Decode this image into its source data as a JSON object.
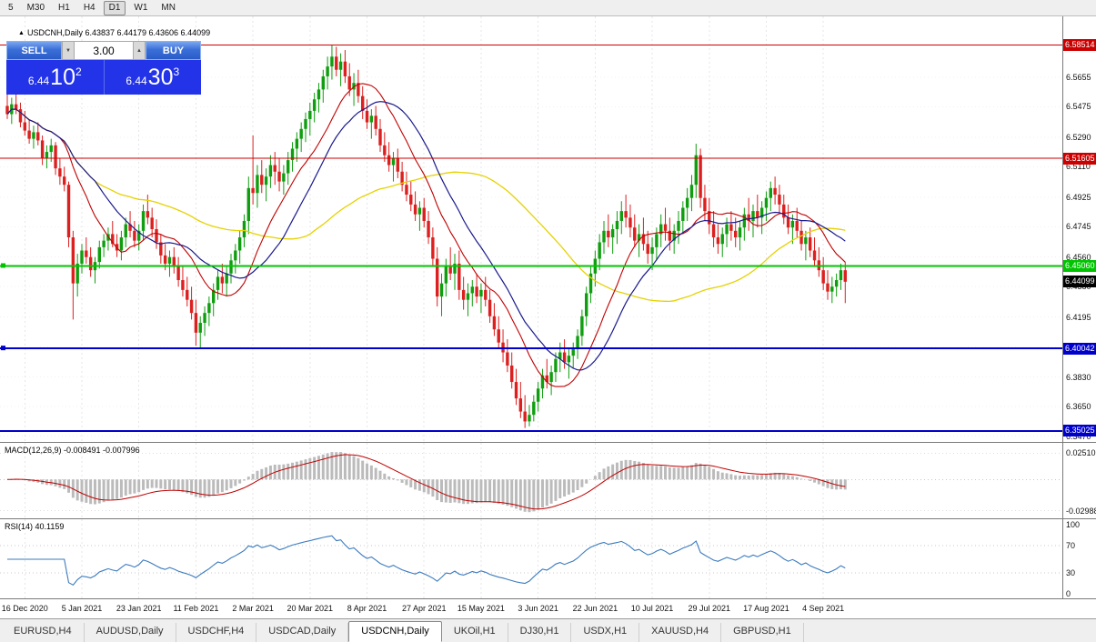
{
  "toolbar": {
    "timeframes": [
      {
        "label": "5",
        "active": false
      },
      {
        "label": "M30",
        "active": false
      },
      {
        "label": "H1",
        "active": false
      },
      {
        "label": "H4",
        "active": false
      },
      {
        "label": "D1",
        "active": true
      },
      {
        "label": "W1",
        "active": false
      },
      {
        "label": "MN",
        "active": false
      }
    ]
  },
  "chart": {
    "collapse_glyph": "▲",
    "symbol_info": "USDCNH,Daily 6.43837 6.44179 6.43606 6.44099"
  },
  "trade_panel": {
    "sell_label": "SELL",
    "buy_label": "BUY",
    "volume": "3.00",
    "spin_down_glyph": "▼",
    "spin_up_glyph": "▲",
    "sell_price": {
      "prefix": "6.44",
      "big": "10",
      "sup": "2"
    },
    "buy_price": {
      "prefix": "6.44",
      "big": "30",
      "sup": "3"
    }
  },
  "price_axis": {
    "ticks": [
      "6.5655",
      "6.5475",
      "6.5290",
      "6.5110",
      "6.4925",
      "6.4745",
      "6.4560",
      "6.4380",
      "6.4195",
      "6.4010",
      "6.3830",
      "6.3650",
      "6.3470"
    ]
  },
  "levels": [
    {
      "label": "6.58514",
      "price": 6.58514,
      "color": "#CC0000",
      "width": 1,
      "marker": false
    },
    {
      "label": "6.51605",
      "price": 6.51605,
      "color": "#CC0000",
      "width": 1,
      "marker": false
    },
    {
      "label": "6.45060",
      "price": 6.4506,
      "color": "#00C400",
      "width": 2,
      "marker": true
    },
    {
      "label": "6.40042",
      "price": 6.40042,
      "color": "#0000CC",
      "width": 2,
      "marker": true
    },
    {
      "label": "6.35025",
      "price": 6.35025,
      "color": "#0000CC",
      "width": 2,
      "marker": false
    }
  ],
  "current_price": {
    "label": "6.44099",
    "price": 6.44099,
    "color": "#000000"
  },
  "macd": {
    "header": "MACD(12,26,9) -0.008491 -0.007996",
    "axis_labels": [
      "0.02510",
      "-0.02988"
    ],
    "histogram_color": "#BBBBBB",
    "signal_color": "#C00000",
    "params": {
      "fast": 12,
      "slow": 26,
      "signal": 9
    }
  },
  "rsi": {
    "header": "RSI(14) 40.1159",
    "axis_labels": [
      "100",
      "70",
      "30",
      "0"
    ],
    "levels": [
      70,
      30
    ],
    "color": "#3B7BBF",
    "period": 14
  },
  "date_axis": [
    {
      "label": "16 Dec 2020",
      "index": 4
    },
    {
      "label": "5 Jan 2021",
      "index": 17
    },
    {
      "label": "23 Jan 2021",
      "index": 30
    },
    {
      "label": "11 Feb 2021",
      "index": 43
    },
    {
      "label": "2 Mar 2021",
      "index": 56
    },
    {
      "label": "20 Mar 2021",
      "index": 69
    },
    {
      "label": "8 Apr 2021",
      "index": 82
    },
    {
      "label": "27 Apr 2021",
      "index": 95
    },
    {
      "label": "15 May 2021",
      "index": 108
    },
    {
      "label": "3 Jun 2021",
      "index": 121
    },
    {
      "label": "22 Jun 2021",
      "index": 134
    },
    {
      "label": "10 Jul 2021",
      "index": 147
    },
    {
      "label": "29 Jul 2021",
      "index": 160
    },
    {
      "label": "17 Aug 2021",
      "index": 173
    },
    {
      "label": "4 Sep 2021",
      "index": 186
    }
  ],
  "tabs": [
    {
      "label": "EURUSD,H4",
      "active": false
    },
    {
      "label": "AUDUSD,Daily",
      "active": false
    },
    {
      "label": "USDCHF,H4",
      "active": false
    },
    {
      "label": "USDCAD,Daily",
      "active": false
    },
    {
      "label": "USDCNH,Daily",
      "active": true
    },
    {
      "label": "UKOil,H1",
      "active": false
    },
    {
      "label": "DJ30,H1",
      "active": false
    },
    {
      "label": "USDX,H1",
      "active": false
    },
    {
      "label": "XAUUSD,H4",
      "active": false
    },
    {
      "label": "GBPUSD,H1",
      "active": false
    }
  ],
  "chart_data": {
    "type": "candlestick",
    "symbol": "USDCNH",
    "timeframe": "Daily",
    "ylim": [
      6.3435,
      6.6025
    ],
    "colors": {
      "up": "#0F9E0F",
      "down": "#DC2020"
    },
    "moving_averages": [
      {
        "period": 13,
        "color": "#C00000"
      },
      {
        "period": 21,
        "color": "#1A1A8C"
      },
      {
        "period": 55,
        "color": "#E6D200"
      }
    ],
    "ohlc": [
      [
        6.548,
        6.556,
        6.54,
        6.543
      ],
      [
        6.543,
        6.553,
        6.537,
        6.549
      ],
      [
        6.549,
        6.557,
        6.543,
        6.546
      ],
      [
        6.546,
        6.55,
        6.535,
        6.538
      ],
      [
        6.538,
        6.545,
        6.53,
        6.533
      ],
      [
        6.533,
        6.54,
        6.525,
        6.528
      ],
      [
        6.528,
        6.536,
        6.522,
        6.532
      ],
      [
        6.532,
        6.538,
        6.524,
        6.527
      ],
      [
        6.527,
        6.53,
        6.512,
        6.516
      ],
      [
        6.516,
        6.524,
        6.51,
        6.52
      ],
      [
        6.52,
        6.528,
        6.514,
        6.524
      ],
      [
        6.524,
        6.526,
        6.506,
        6.51
      ],
      [
        6.51,
        6.516,
        6.5,
        6.505
      ],
      [
        6.505,
        6.511,
        6.496,
        6.5
      ],
      [
        6.5,
        6.502,
        6.462,
        6.468
      ],
      [
        6.468,
        6.472,
        6.418,
        6.44
      ],
      [
        6.44,
        6.458,
        6.432,
        6.452
      ],
      [
        6.452,
        6.464,
        6.446,
        6.46
      ],
      [
        6.46,
        6.468,
        6.452,
        6.456
      ],
      [
        6.456,
        6.462,
        6.444,
        6.448
      ],
      [
        6.448,
        6.456,
        6.44,
        6.453
      ],
      [
        6.453,
        6.466,
        6.449,
        6.462
      ],
      [
        6.462,
        6.47,
        6.456,
        6.466
      ],
      [
        6.466,
        6.474,
        6.46,
        6.47
      ],
      [
        6.47,
        6.478,
        6.462,
        6.464
      ],
      [
        6.464,
        6.47,
        6.456,
        6.46
      ],
      [
        6.46,
        6.472,
        6.454,
        6.468
      ],
      [
        6.468,
        6.48,
        6.462,
        6.476
      ],
      [
        6.476,
        6.484,
        6.468,
        6.472
      ],
      [
        6.472,
        6.478,
        6.462,
        6.466
      ],
      [
        6.466,
        6.476,
        6.46,
        6.472
      ],
      [
        6.472,
        6.488,
        6.466,
        6.484
      ],
      [
        6.484,
        6.494,
        6.476,
        6.48
      ],
      [
        6.48,
        6.486,
        6.468,
        6.473
      ],
      [
        6.473,
        6.479,
        6.461,
        6.465
      ],
      [
        6.465,
        6.47,
        6.452,
        6.457
      ],
      [
        6.457,
        6.464,
        6.448,
        6.452
      ],
      [
        6.452,
        6.46,
        6.444,
        6.456
      ],
      [
        6.456,
        6.462,
        6.446,
        6.45
      ],
      [
        6.45,
        6.456,
        6.438,
        6.442
      ],
      [
        6.442,
        6.45,
        6.432,
        6.436
      ],
      [
        6.436,
        6.444,
        6.426,
        6.43
      ],
      [
        6.43,
        6.438,
        6.418,
        6.422
      ],
      [
        6.422,
        6.43,
        6.402,
        6.41
      ],
      [
        6.41,
        6.42,
        6.4,
        6.416
      ],
      [
        6.416,
        6.426,
        6.408,
        6.422
      ],
      [
        6.422,
        6.432,
        6.414,
        6.428
      ],
      [
        6.428,
        6.44,
        6.42,
        6.436
      ],
      [
        6.436,
        6.448,
        6.43,
        6.444
      ],
      [
        6.444,
        6.452,
        6.434,
        6.44
      ],
      [
        6.44,
        6.45,
        6.432,
        6.446
      ],
      [
        6.446,
        6.458,
        6.44,
        6.454
      ],
      [
        6.454,
        6.464,
        6.446,
        6.46
      ],
      [
        6.46,
        6.472,
        6.452,
        6.468
      ],
      [
        6.468,
        6.482,
        6.462,
        6.478
      ],
      [
        6.478,
        6.505,
        6.47,
        6.498
      ],
      [
        6.498,
        6.53,
        6.488,
        6.495
      ],
      [
        6.495,
        6.512,
        6.486,
        6.506
      ],
      [
        6.506,
        6.515,
        6.495,
        6.5
      ],
      [
        6.5,
        6.51,
        6.49,
        6.505
      ],
      [
        6.505,
        6.518,
        6.498,
        6.512
      ],
      [
        6.512,
        6.52,
        6.5,
        6.508
      ],
      [
        6.508,
        6.516,
        6.496,
        6.502
      ],
      [
        6.502,
        6.512,
        6.494,
        6.507
      ],
      [
        6.507,
        6.52,
        6.5,
        6.515
      ],
      [
        6.515,
        6.526,
        6.508,
        6.522
      ],
      [
        6.522,
        6.532,
        6.514,
        6.528
      ],
      [
        6.528,
        6.538,
        6.52,
        6.534
      ],
      [
        6.534,
        6.544,
        6.526,
        6.54
      ],
      [
        6.54,
        6.55,
        6.53,
        6.545
      ],
      [
        6.545,
        6.556,
        6.538,
        6.552
      ],
      [
        6.552,
        6.562,
        6.544,
        6.558
      ],
      [
        6.558,
        6.57,
        6.55,
        6.566
      ],
      [
        6.566,
        6.578,
        6.558,
        6.572
      ],
      [
        6.572,
        6.585,
        6.564,
        6.578
      ],
      [
        6.578,
        6.584,
        6.566,
        6.57
      ],
      [
        6.57,
        6.58,
        6.56,
        6.575
      ],
      [
        6.575,
        6.582,
        6.562,
        6.566
      ],
      [
        6.566,
        6.574,
        6.554,
        6.558
      ],
      [
        6.558,
        6.568,
        6.548,
        6.562
      ],
      [
        6.562,
        6.57,
        6.55,
        6.554
      ],
      [
        6.554,
        6.56,
        6.54,
        6.545
      ],
      [
        6.545,
        6.552,
        6.534,
        6.538
      ],
      [
        6.538,
        6.546,
        6.528,
        6.542
      ],
      [
        6.542,
        6.548,
        6.53,
        6.534
      ],
      [
        6.534,
        6.54,
        6.52,
        6.524
      ],
      [
        6.524,
        6.532,
        6.514,
        6.518
      ],
      [
        6.518,
        6.526,
        6.508,
        6.512
      ],
      [
        6.512,
        6.52,
        6.502,
        6.516
      ],
      [
        6.516,
        6.522,
        6.504,
        6.508
      ],
      [
        6.508,
        6.514,
        6.496,
        6.5
      ],
      [
        6.5,
        6.508,
        6.49,
        6.494
      ],
      [
        6.494,
        6.502,
        6.484,
        6.488
      ],
      [
        6.488,
        6.496,
        6.478,
        6.482
      ],
      [
        6.482,
        6.49,
        6.472,
        6.486
      ],
      [
        6.486,
        6.492,
        6.474,
        6.478
      ],
      [
        6.478,
        6.484,
        6.464,
        6.468
      ],
      [
        6.468,
        6.474,
        6.45,
        6.455
      ],
      [
        6.455,
        6.462,
        6.426,
        6.432
      ],
      [
        6.432,
        6.446,
        6.42,
        6.44
      ],
      [
        6.44,
        6.455,
        6.432,
        6.45
      ],
      [
        6.45,
        6.462,
        6.442,
        6.446
      ],
      [
        6.446,
        6.458,
        6.436,
        6.452
      ],
      [
        6.452,
        6.46,
        6.43,
        6.436
      ],
      [
        6.436,
        6.444,
        6.424,
        6.43
      ],
      [
        6.43,
        6.44,
        6.42,
        6.434
      ],
      [
        6.434,
        6.442,
        6.426,
        6.438
      ],
      [
        6.438,
        6.446,
        6.428,
        6.432
      ],
      [
        6.432,
        6.44,
        6.422,
        6.436
      ],
      [
        6.436,
        6.444,
        6.426,
        6.43
      ],
      [
        6.43,
        6.436,
        6.416,
        6.42
      ],
      [
        6.42,
        6.428,
        6.408,
        6.412
      ],
      [
        6.412,
        6.42,
        6.4,
        6.404
      ],
      [
        6.404,
        6.412,
        6.392,
        6.398
      ],
      [
        6.398,
        6.406,
        6.386,
        6.39
      ],
      [
        6.39,
        6.398,
        6.376,
        6.38
      ],
      [
        6.38,
        6.388,
        6.366,
        6.37
      ],
      [
        6.37,
        6.38,
        6.358,
        6.362
      ],
      [
        6.362,
        6.372,
        6.352,
        6.356
      ],
      [
        6.356,
        6.366,
        6.353,
        6.36
      ],
      [
        6.36,
        6.372,
        6.356,
        6.368
      ],
      [
        6.368,
        6.38,
        6.362,
        6.376
      ],
      [
        6.376,
        6.388,
        6.37,
        6.384
      ],
      [
        6.384,
        6.394,
        6.376,
        6.38
      ],
      [
        6.38,
        6.39,
        6.372,
        6.386
      ],
      [
        6.386,
        6.398,
        6.38,
        6.394
      ],
      [
        6.394,
        6.404,
        6.386,
        6.398
      ],
      [
        6.398,
        6.406,
        6.388,
        6.392
      ],
      [
        6.392,
        6.4,
        6.382,
        6.396
      ],
      [
        6.396,
        6.404,
        6.388,
        6.4
      ],
      [
        6.4,
        6.412,
        6.394,
        6.408
      ],
      [
        6.408,
        6.424,
        6.402,
        6.42
      ],
      [
        6.42,
        6.438,
        6.414,
        6.434
      ],
      [
        6.434,
        6.45,
        6.428,
        6.446
      ],
      [
        6.446,
        6.46,
        6.438,
        6.455
      ],
      [
        6.455,
        6.47,
        6.448,
        6.465
      ],
      [
        6.465,
        6.478,
        6.458,
        6.472
      ],
      [
        6.472,
        6.482,
        6.462,
        6.468
      ],
      [
        6.468,
        6.476,
        6.458,
        6.473
      ],
      [
        6.473,
        6.484,
        6.464,
        6.478
      ],
      [
        6.478,
        6.49,
        6.47,
        6.484
      ],
      [
        6.484,
        6.494,
        6.474,
        6.48
      ],
      [
        6.48,
        6.488,
        6.468,
        6.474
      ],
      [
        6.474,
        6.482,
        6.462,
        6.466
      ],
      [
        6.466,
        6.476,
        6.456,
        6.47
      ],
      [
        6.47,
        6.48,
        6.46,
        6.464
      ],
      [
        6.464,
        6.472,
        6.452,
        6.458
      ],
      [
        6.458,
        6.468,
        6.448,
        6.462
      ],
      [
        6.462,
        6.474,
        6.454,
        6.47
      ],
      [
        6.47,
        6.482,
        6.462,
        6.476
      ],
      [
        6.476,
        6.486,
        6.466,
        6.472
      ],
      [
        6.472,
        6.48,
        6.46,
        6.466
      ],
      [
        6.466,
        6.476,
        6.458,
        6.472
      ],
      [
        6.472,
        6.484,
        6.464,
        6.478
      ],
      [
        6.478,
        6.49,
        6.47,
        6.486
      ],
      [
        6.486,
        6.498,
        6.478,
        6.492
      ],
      [
        6.492,
        6.506,
        6.484,
        6.5
      ],
      [
        6.5,
        6.525,
        6.492,
        6.518
      ],
      [
        6.518,
        6.522,
        6.486,
        6.492
      ],
      [
        6.492,
        6.5,
        6.478,
        6.484
      ],
      [
        6.484,
        6.492,
        6.47,
        6.476
      ],
      [
        6.476,
        6.484,
        6.462,
        6.468
      ],
      [
        6.468,
        6.476,
        6.458,
        6.464
      ],
      [
        6.464,
        6.474,
        6.456,
        6.47
      ],
      [
        6.47,
        6.48,
        6.462,
        6.476
      ],
      [
        6.476,
        6.484,
        6.466,
        6.472
      ],
      [
        6.472,
        6.48,
        6.462,
        6.468
      ],
      [
        6.468,
        6.478,
        6.46,
        6.474
      ],
      [
        6.474,
        6.486,
        6.466,
        6.482
      ],
      [
        6.482,
        6.492,
        6.472,
        6.478
      ],
      [
        6.478,
        6.488,
        6.468,
        6.484
      ],
      [
        6.484,
        6.494,
        6.474,
        6.48
      ],
      [
        6.48,
        6.49,
        6.47,
        6.486
      ],
      [
        6.486,
        6.496,
        6.478,
        6.492
      ],
      [
        6.492,
        6.502,
        6.484,
        6.498
      ],
      [
        6.498,
        6.505,
        6.488,
        6.494
      ],
      [
        6.494,
        6.5,
        6.482,
        6.488
      ],
      [
        6.488,
        6.494,
        6.476,
        6.48
      ],
      [
        6.48,
        6.488,
        6.47,
        6.474
      ],
      [
        6.474,
        6.482,
        6.464,
        6.478
      ],
      [
        6.478,
        6.486,
        6.468,
        6.472
      ],
      [
        6.472,
        6.478,
        6.46,
        6.464
      ],
      [
        6.464,
        6.472,
        6.454,
        6.468
      ],
      [
        6.468,
        6.474,
        6.456,
        6.46
      ],
      [
        6.46,
        6.468,
        6.45,
        6.454
      ],
      [
        6.454,
        6.462,
        6.444,
        6.448
      ],
      [
        6.448,
        6.456,
        6.436,
        6.44
      ],
      [
        6.44,
        6.448,
        6.43,
        6.435
      ],
      [
        6.435,
        6.444,
        6.428,
        6.438
      ],
      [
        6.438,
        6.446,
        6.432,
        6.442
      ],
      [
        6.442,
        6.452,
        6.436,
        6.448
      ],
      [
        6.448,
        6.453,
        6.428,
        6.441
      ]
    ]
  }
}
